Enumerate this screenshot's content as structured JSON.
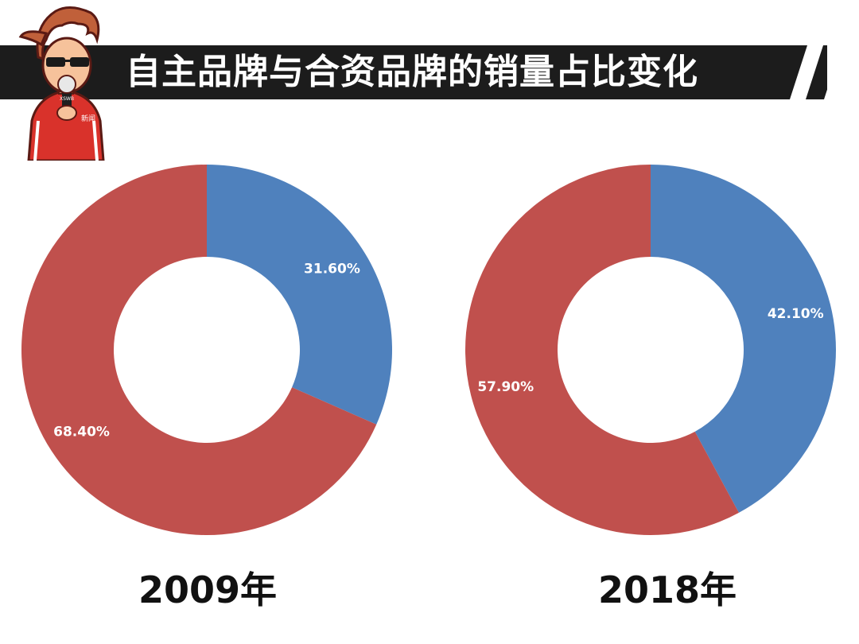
{
  "title": "自主品牌与合资品牌的销量占比变化",
  "colors": {
    "title_bar": "#1c1c1c",
    "domestic": "#4f81bd",
    "joint_venture": "#c0504d"
  },
  "mascot": {
    "icon": "reporter-mascot-icon",
    "mic_text": "XSWB",
    "shirt_text": "新闻"
  },
  "chart_data": [
    {
      "type": "pie",
      "style": "donut",
      "title": "2009年",
      "slices": [
        {
          "label": "31.60%",
          "value": 31.6,
          "color": "#4f81bd"
        },
        {
          "label": "68.40%",
          "value": 68.4,
          "color": "#c0504d"
        }
      ]
    },
    {
      "type": "pie",
      "style": "donut",
      "title": "2018年",
      "slices": [
        {
          "label": "42.10%",
          "value": 42.1,
          "color": "#4f81bd"
        },
        {
          "label": "57.90%",
          "value": 57.9,
          "color": "#c0504d"
        }
      ]
    }
  ]
}
